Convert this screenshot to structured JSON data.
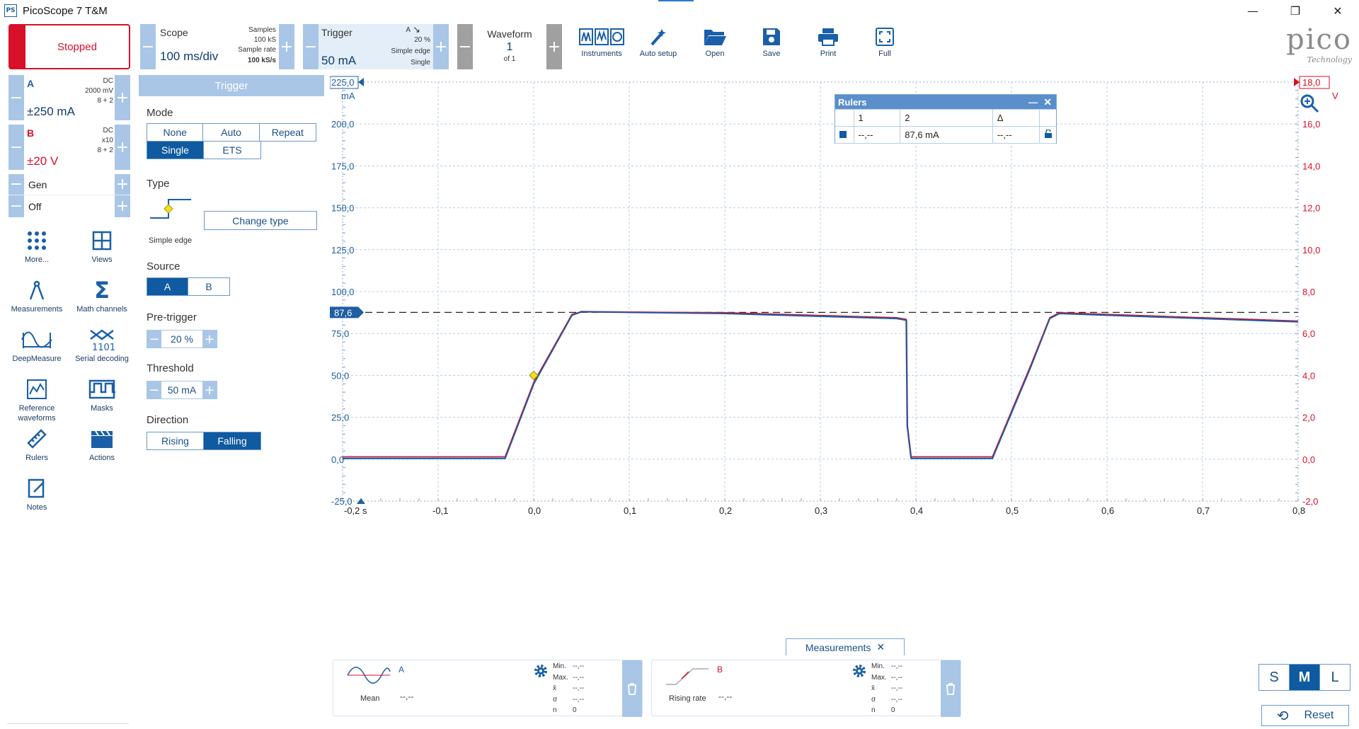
{
  "window": {
    "title": "PicoScope 7 T&M",
    "icon_text": "PS"
  },
  "toolbar": {
    "run_state": "Stopped",
    "scope": {
      "label": "Scope",
      "timebase": "100 ms/div",
      "samples_label": "Samples",
      "samples": "100 kS",
      "rate_label": "Sample rate",
      "rate": "100 kS/s"
    },
    "trigger": {
      "label": "Trigger",
      "level": "50 mA",
      "channel": "A",
      "pretrigger": "20 %",
      "type": "Simple edge",
      "mode": "Single"
    },
    "waveform": {
      "label": "Waveform",
      "index": "1",
      "of": "of 1"
    },
    "tools": [
      {
        "label": "Instruments",
        "icon": "instruments-icon"
      },
      {
        "label": "Auto setup",
        "icon": "auto-setup-icon"
      },
      {
        "label": "Open",
        "icon": "folder-open-icon"
      },
      {
        "label": "Save",
        "icon": "save-icon"
      },
      {
        "label": "Print",
        "icon": "printer-icon"
      },
      {
        "label": "Full",
        "icon": "fullscreen-icon"
      }
    ],
    "logo": {
      "text": "pico",
      "sub": "Technology"
    }
  },
  "channels": {
    "a": {
      "name": "A",
      "coupling": "DC",
      "probe": "2000 mV",
      "bits": "8 + 2",
      "range": "±250 mA"
    },
    "b": {
      "name": "B",
      "coupling": "DC",
      "probe": "x10",
      "bits": "8 + 2",
      "range": "±20 V"
    },
    "gen": {
      "label": "Gen",
      "state": "Off"
    }
  },
  "sidebar": [
    {
      "label": "More...",
      "icon": "more-dots-icon"
    },
    {
      "label": "Views",
      "icon": "views-grid-icon"
    },
    {
      "label": "Measurements",
      "icon": "measurements-icon"
    },
    {
      "label": "Math channels",
      "icon": "sigma-icon"
    },
    {
      "label": "DeepMeasure",
      "icon": "deepmeasure-icon"
    },
    {
      "label": "Serial decoding",
      "icon": "serial-decoding-icon"
    },
    {
      "label": "Reference waveforms",
      "icon": "reference-waveforms-icon"
    },
    {
      "label": "Masks",
      "icon": "masks-icon"
    },
    {
      "label": "Rulers",
      "icon": "ruler-icon"
    },
    {
      "label": "Actions",
      "icon": "clapperboard-icon"
    },
    {
      "label": "Notes",
      "icon": "notes-icon"
    }
  ],
  "trigger_panel": {
    "title": "Trigger",
    "mode_label": "Mode",
    "modes": [
      "None",
      "Auto",
      "Repeat",
      "Single",
      "ETS"
    ],
    "mode_selected": "Single",
    "type_label": "Type",
    "type_name": "Simple edge",
    "change_type": "Change type",
    "source_label": "Source",
    "sources": [
      "A",
      "B"
    ],
    "source_selected": "A",
    "pretrigger_label": "Pre-trigger",
    "pretrigger": "20 %",
    "threshold_label": "Threshold",
    "threshold": "50 mA",
    "direction_label": "Direction",
    "directions": [
      "Rising",
      "Falling"
    ],
    "direction_selected": "Falling"
  },
  "plot": {
    "left_axis": {
      "unit": "mA",
      "top": "225,0",
      "ticks": [
        "200,0",
        "175,0",
        "150,0",
        "125,0",
        "100,0",
        "75,0",
        "50,0",
        "25,0",
        "0,0",
        "-25,0"
      ],
      "color": "#1f5ea0"
    },
    "right_axis": {
      "unit": "V",
      "top": "18,0",
      "ticks": [
        "16,0",
        "14,0",
        "12,0",
        "10,0",
        "8,0",
        "6,0",
        "4,0",
        "2,0",
        "0,0",
        "-2,0"
      ],
      "color": "#d8102a"
    },
    "x_axis": {
      "ticks": [
        "-0,2 s",
        "-0,1",
        "0,0",
        "0,1",
        "0,2",
        "0,3",
        "0,4",
        "0,5",
        "0,6",
        "0,7",
        "0,8"
      ]
    },
    "ruler_marker": "87,6",
    "ruler_value_ma": 87.6
  },
  "chart_data": {
    "type": "line",
    "xlabel": "",
    "ylabel": "mA",
    "xlim": [
      -0.2,
      0.8
    ],
    "ylim": [
      -25,
      225
    ],
    "y2lim": [
      -2,
      18
    ],
    "grid": true,
    "series": [
      {
        "name": "A",
        "color": "#1a5fa8",
        "x": [
          -0.2,
          -0.03,
          0.0,
          0.04,
          0.05,
          0.2,
          0.38,
          0.39,
          0.391,
          0.395,
          0.48,
          0.52,
          0.54,
          0.55,
          0.7,
          0.8
        ],
        "y": [
          0.5,
          0.5,
          45,
          86,
          88,
          87,
          84,
          83,
          20,
          0.5,
          0.5,
          55,
          84,
          87,
          84,
          82
        ]
      },
      {
        "name": "B",
        "color": "#d8102a",
        "x": [
          -0.2,
          -0.03,
          0.0,
          0.04,
          0.05,
          0.2,
          0.38,
          0.39,
          0.391,
          0.395,
          0.48,
          0.52,
          0.54,
          0.55,
          0.7,
          0.8
        ],
        "y": [
          1.5,
          1.5,
          46,
          86.5,
          88,
          87.5,
          84.5,
          83.5,
          20,
          1.5,
          1.5,
          56,
          84.5,
          87.5,
          84.5,
          82.5
        ]
      }
    ],
    "annotations": [
      {
        "type": "ruler",
        "value": 87.6
      },
      {
        "type": "trigger",
        "x": 0.0,
        "y": 50
      }
    ]
  },
  "rulers": {
    "title": "Rulers",
    "cols": [
      "1",
      "2",
      "Δ"
    ],
    "row": [
      "--,--",
      "87,6 mA",
      "--,--"
    ]
  },
  "measurements": {
    "tab": "Measurements",
    "panels": [
      {
        "channel": "A",
        "name": "Mean",
        "value": "--,--",
        "stats": [
          [
            "Min.",
            "--,--"
          ],
          [
            "Max.",
            "--,--"
          ],
          [
            "x̄",
            "--,--"
          ],
          [
            "σ",
            "--,--"
          ],
          [
            "n",
            "0"
          ]
        ]
      },
      {
        "channel": "B",
        "name": "Rising rate",
        "value": "--,--",
        "stats": [
          [
            "Min.",
            "--,--"
          ],
          [
            "Max.",
            "--,--"
          ],
          [
            "x̄",
            "--,--"
          ],
          [
            "σ",
            "--,--"
          ],
          [
            "n",
            "0"
          ]
        ]
      }
    ]
  },
  "view_size": {
    "options": [
      "S",
      "M",
      "L"
    ],
    "selected": "M",
    "reset": "Reset"
  }
}
